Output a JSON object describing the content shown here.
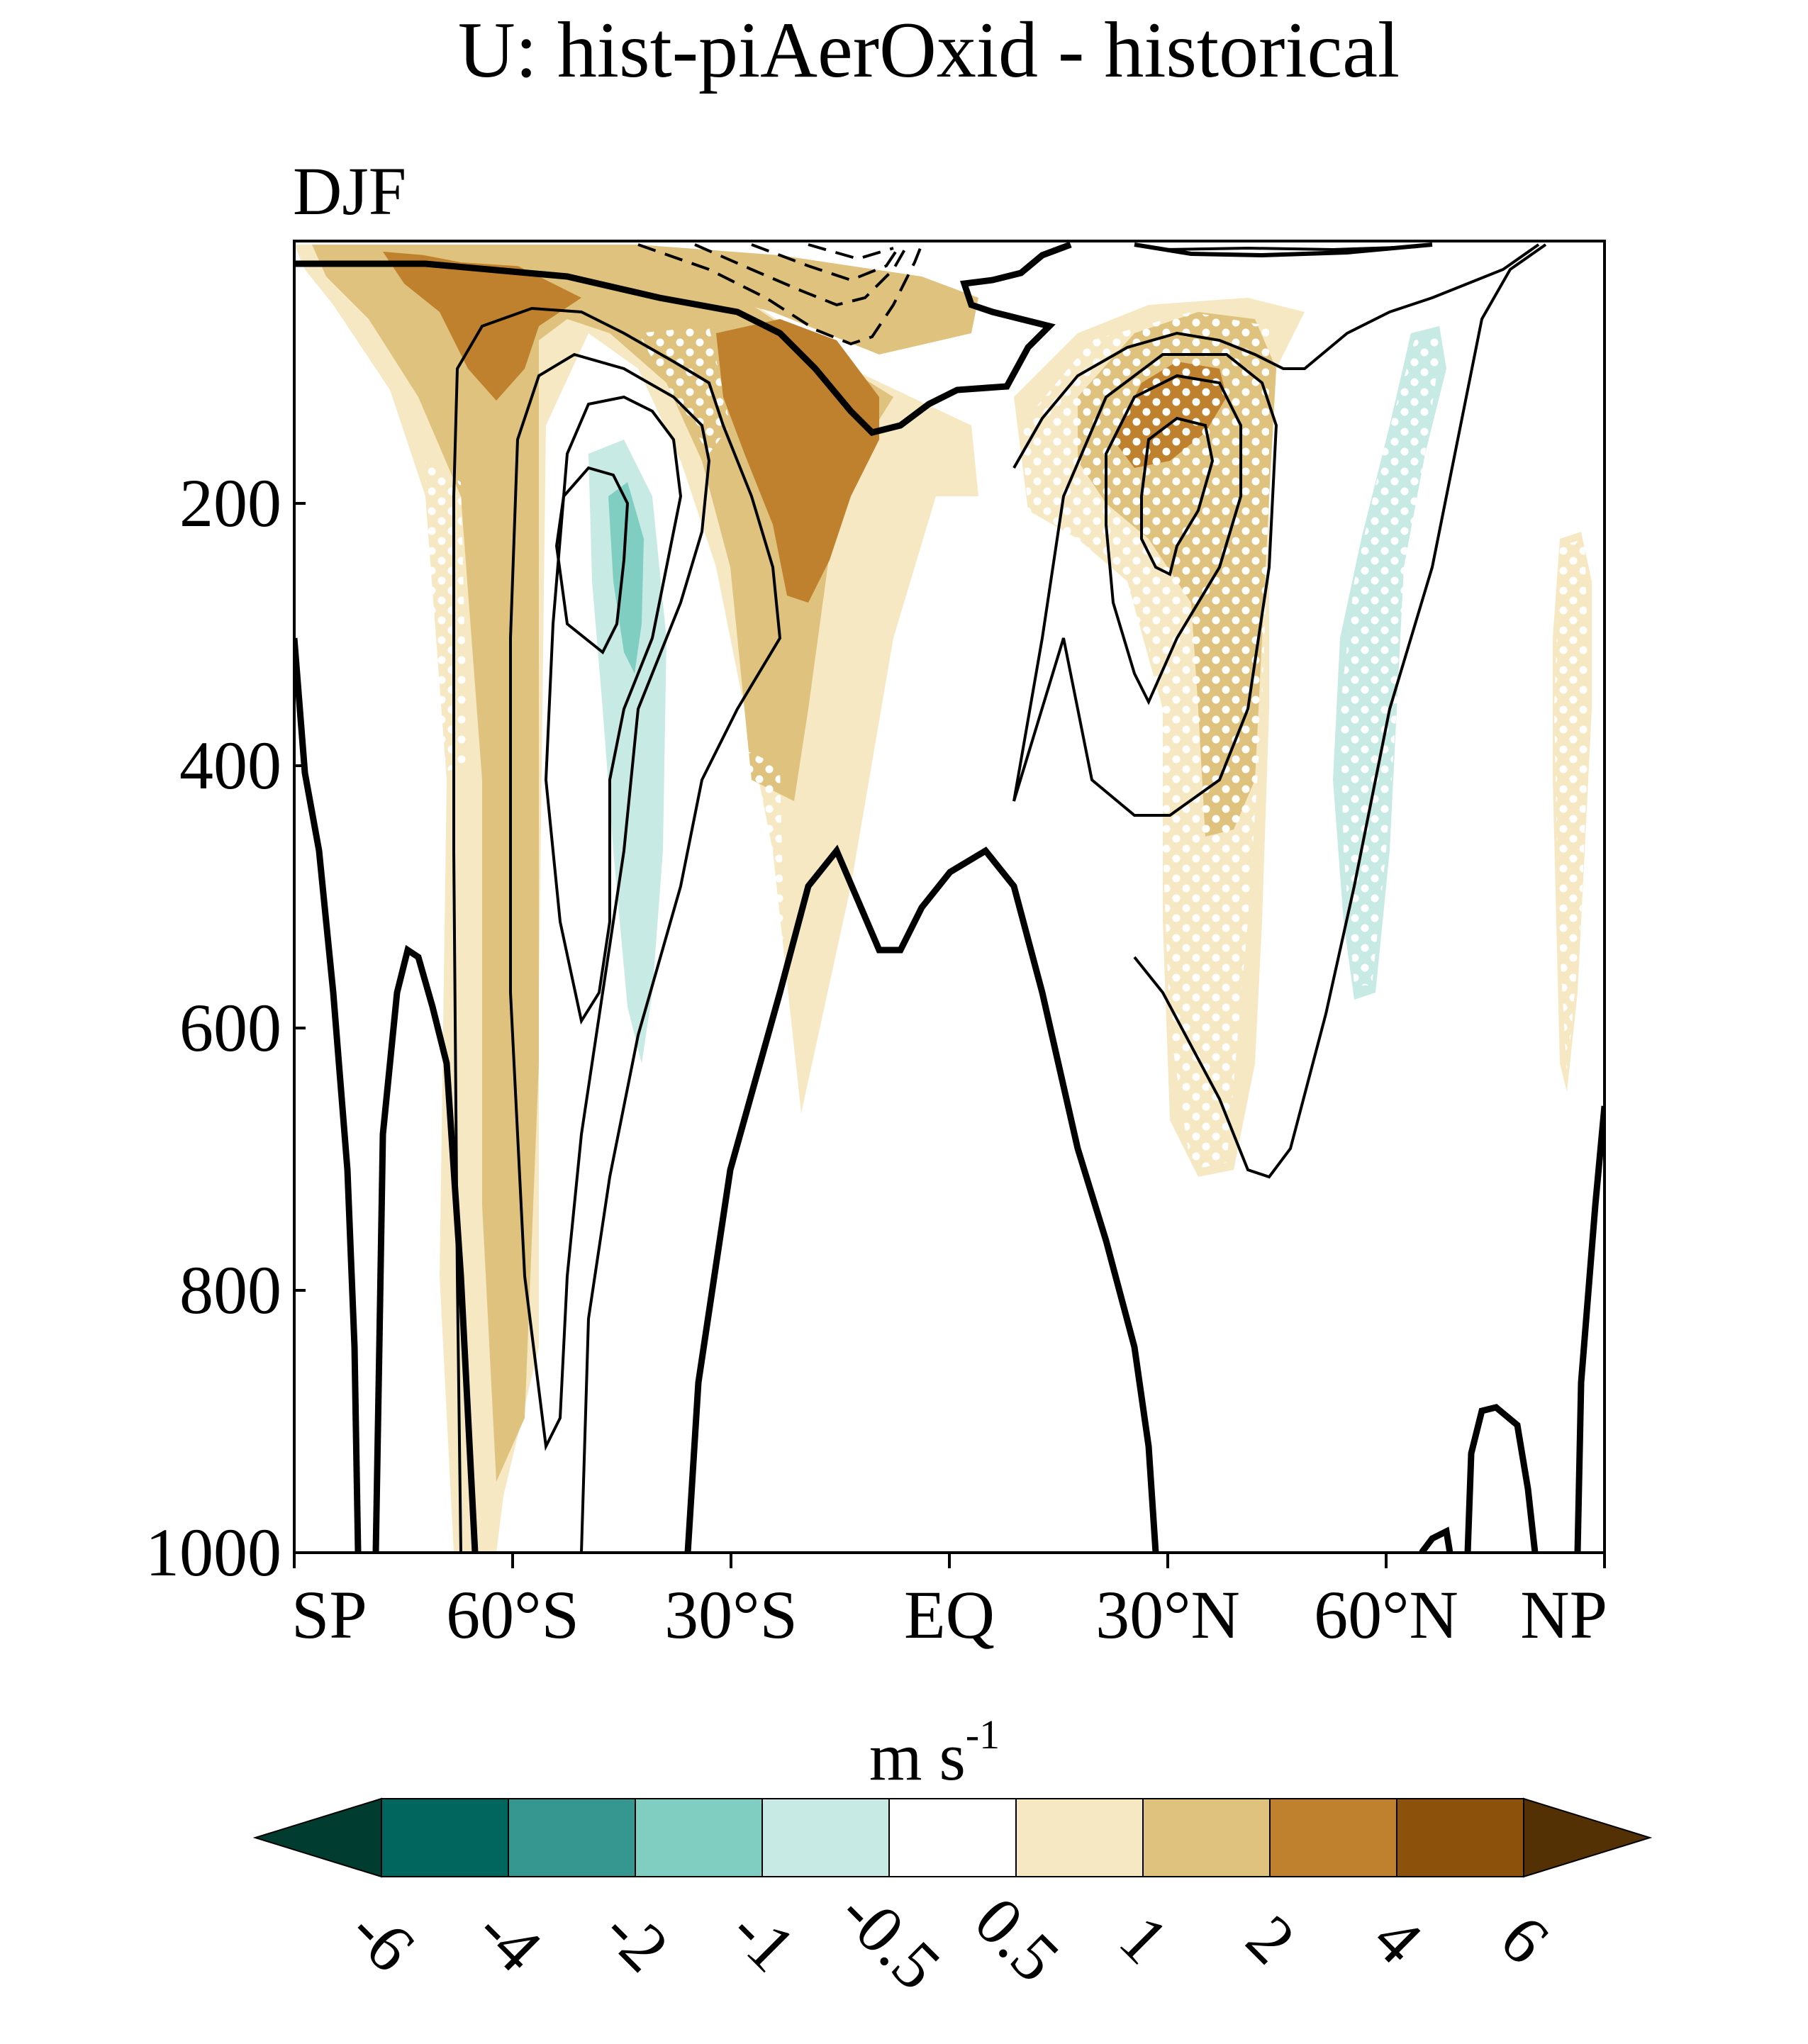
{
  "chart_data": {
    "type": "contour",
    "title": "U: hist-piAerOxid - historical",
    "subtitle": "DJF",
    "xlabel": "",
    "ylabel": "",
    "x_ticks": [
      "SP",
      "60°S",
      "30°S",
      "EQ",
      "30°N",
      "60°N",
      "NP"
    ],
    "x_tick_values": [
      -90,
      -60,
      -30,
      0,
      30,
      60,
      90
    ],
    "y_ticks": [
      "200",
      "400",
      "600",
      "800",
      "1000"
    ],
    "y_tick_values": [
      200,
      400,
      600,
      800,
      1000
    ],
    "xlim": [
      -90,
      90
    ],
    "ylim": [
      1000,
      0
    ],
    "colorbar": {
      "unit_main": "m s",
      "unit_exp": "-1",
      "levels": [
        "-6",
        "-4",
        "-2",
        "-1",
        "-0.5",
        "0.5",
        "1",
        "2",
        "4",
        "6"
      ],
      "colors": [
        "#003c30",
        "#01665e",
        "#35978f",
        "#80cdc1",
        "#c7eae5",
        "#ffffff",
        "#f6e8c3",
        "#dfc27d",
        "#bf812d",
        "#8c510a",
        "#543005"
      ]
    },
    "shaded_regions": [
      {
        "level": "0.5 to 1",
        "color": "#f6e8c3",
        "center": [
          -70,
          350
        ]
      },
      {
        "level": "1 to 2",
        "color": "#dfc27d",
        "center": [
          -67,
          500
        ]
      },
      {
        "level": "2 to 4",
        "color": "#bf812d",
        "center": [
          -63,
          110
        ]
      },
      {
        "level": "2 to 4",
        "color": "#bf812d",
        "center": [
          -22,
          180
        ]
      },
      {
        "level": "1 to 2",
        "color": "#dfc27d",
        "center": [
          -25,
          300
        ]
      },
      {
        "level": "0.5 to 1",
        "color": "#f6e8c3",
        "center": [
          -28,
          400
        ]
      },
      {
        "level": "1 to 2",
        "color": "#dfc27d",
        "center": [
          32,
          200
        ]
      },
      {
        "level": "0.5 to 1",
        "color": "#f6e8c3",
        "center": [
          34,
          400
        ]
      },
      {
        "level": "-0.5 to -1",
        "color": "#c7eae5",
        "center": [
          -46,
          400
        ]
      },
      {
        "level": "-1 to -2",
        "color": "#80cdc1",
        "center": [
          -45,
          250
        ]
      },
      {
        "level": "-0.5 to -1",
        "color": "#c7eae5",
        "center": [
          57,
          330
        ]
      },
      {
        "level": "0.5 to 1",
        "color": "#f6e8c3",
        "center": [
          84,
          420
        ]
      }
    ],
    "climatology_contours": "solid = positive U, dashed = negative U, thick = 0"
  }
}
